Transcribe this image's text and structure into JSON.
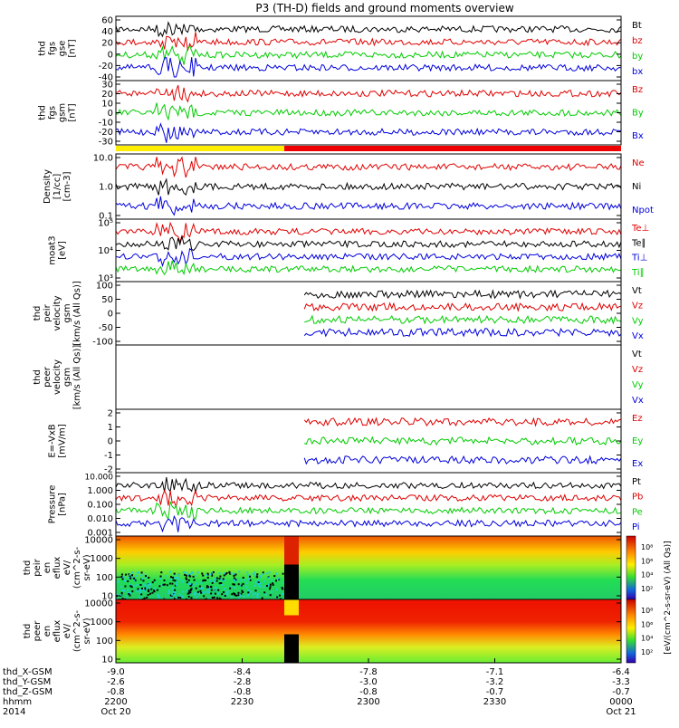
{
  "title": "P3 (TH-D) fields and ground moments overview",
  "panels": [
    {
      "id": "fgs_gse",
      "ylabel": [
        "thd",
        "fgs",
        "gse",
        "[nT]"
      ],
      "ticks": [
        "60",
        "40",
        "20",
        "0",
        "-20",
        "-40"
      ],
      "series": [
        {
          "name": "Bt",
          "color": "#000000"
        },
        {
          "name": "bz",
          "color": "#e00000"
        },
        {
          "name": "by",
          "color": "#00cc00"
        },
        {
          "name": "bx",
          "color": "#0000dd"
        }
      ]
    },
    {
      "id": "fgs_gsm",
      "ylabel": [
        "thd",
        "fgs",
        "gsm",
        "[nT]"
      ],
      "ticks": [
        "30",
        "20",
        "10",
        "0",
        "-10",
        "-20",
        "-30"
      ],
      "series": [
        {
          "name": "Bz",
          "color": "#e00000"
        },
        {
          "name": "By",
          "color": "#00cc00"
        },
        {
          "name": "Bx",
          "color": "#0000dd"
        }
      ]
    },
    {
      "id": "density",
      "ylabel": [
        "Density",
        "[1/cc]",
        "[cm-3]"
      ],
      "ticks": [
        "10.0",
        "1.0",
        "0.1"
      ],
      "series": [
        {
          "name": "Ne",
          "color": "#e00000"
        },
        {
          "name": "Ni",
          "color": "#000000"
        },
        {
          "name": "Npot",
          "color": "#0000dd"
        }
      ]
    },
    {
      "id": "temperature",
      "ylabel": [
        "moat3",
        "[eV]"
      ],
      "ticks": [
        "10⁵",
        "10⁴",
        "10³"
      ],
      "series": [
        {
          "name": "Te⊥",
          "color": "#e00000"
        },
        {
          "name": "Te∥",
          "color": "#000000"
        },
        {
          "name": "Ti⊥",
          "color": "#0000dd"
        },
        {
          "name": "Ti∥",
          "color": "#00cc00"
        }
      ]
    },
    {
      "id": "peir_velocity",
      "ylabel": [
        "thd",
        "peir",
        "velocity",
        "gsm",
        "[km/s (All Qs)]"
      ],
      "ticks": [
        "100",
        "50",
        "0",
        "-50",
        "-100"
      ],
      "series": [
        {
          "name": "Vt",
          "color": "#000000"
        },
        {
          "name": "Vz",
          "color": "#e00000"
        },
        {
          "name": "Vy",
          "color": "#00cc00"
        },
        {
          "name": "Vx",
          "color": "#0000dd"
        }
      ]
    },
    {
      "id": "peer_velocity",
      "ylabel": [
        "thd",
        "peer",
        "velocity",
        "gsm",
        "[km/s (All Qs)]"
      ],
      "ticks": [],
      "series": [
        {
          "name": "Vt",
          "color": "#000000"
        },
        {
          "name": "Vz",
          "color": "#e00000"
        },
        {
          "name": "Vy",
          "color": "#00cc00"
        },
        {
          "name": "Vx",
          "color": "#0000dd"
        }
      ]
    },
    {
      "id": "efield",
      "ylabel": [
        "E=-VxB",
        "[mV/m]"
      ],
      "ticks": [
        "2",
        "1",
        "0",
        "-1",
        "-2"
      ],
      "series": [
        {
          "name": "Ez",
          "color": "#e00000"
        },
        {
          "name": "Ey",
          "color": "#00cc00"
        },
        {
          "name": "Ex",
          "color": "#0000dd"
        }
      ]
    },
    {
      "id": "pressure",
      "ylabel": [
        "Pressure",
        "[nPa]"
      ],
      "ticks": [
        "10.000",
        "1.000",
        "0.100",
        "0.010",
        "0.001"
      ],
      "series": [
        {
          "name": "Pt",
          "color": "#000000"
        },
        {
          "name": "Pb",
          "color": "#e00000"
        },
        {
          "name": "Pe",
          "color": "#00cc00"
        },
        {
          "name": "Pi",
          "color": "#0000dd"
        }
      ]
    },
    {
      "id": "peir_spec",
      "ylabel": [
        "thd",
        "peir",
        "en",
        "eflux",
        "eV/",
        "(cm^2-s-",
        "sr-eV)"
      ],
      "ticks": [
        "10000",
        "1000",
        "100",
        "10"
      ],
      "series": []
    },
    {
      "id": "peer_spec",
      "ylabel": [
        "thd",
        "peer",
        "en",
        "eflux",
        "eV/",
        "(cm^2-s-",
        "sr-eV)"
      ],
      "ticks": [
        "10000",
        "1000",
        "100",
        "10"
      ],
      "series": []
    }
  ],
  "colorbar": {
    "label": "[eV/(cm^2-s-sr-eV) (All Qs)]",
    "ticks": [
      "10⁸",
      "10⁶",
      "10⁴",
      "10²"
    ],
    "top_ticks": [
      "10⁸",
      "10⁶",
      "10⁴",
      "10²"
    ]
  },
  "x_axis": {
    "row_labels": [
      "thd_X-GSM",
      "thd_Y-GSM",
      "thd_Z-GSM",
      "hhmm",
      "2014"
    ],
    "ticks": [
      {
        "x": "-9.0",
        "y": "-2.6",
        "z": "-0.8",
        "hhmm": "2200",
        "date": "Oct 20"
      },
      {
        "x": "-8.4",
        "y": "-2.8",
        "z": "-0.8",
        "hhmm": "2230",
        "date": ""
      },
      {
        "x": "-7.8",
        "y": "-3.0",
        "z": "-0.8",
        "hhmm": "2300",
        "date": ""
      },
      {
        "x": "-7.1",
        "y": "-3.2",
        "z": "-0.7",
        "hhmm": "2330",
        "date": ""
      },
      {
        "x": "-6.4",
        "y": "-3.3",
        "z": "-0.7",
        "hhmm": "0000",
        "date": "Oct 21"
      }
    ]
  },
  "mode_bar": {
    "colors": [
      "#ffee00",
      "#ee0000"
    ]
  }
}
